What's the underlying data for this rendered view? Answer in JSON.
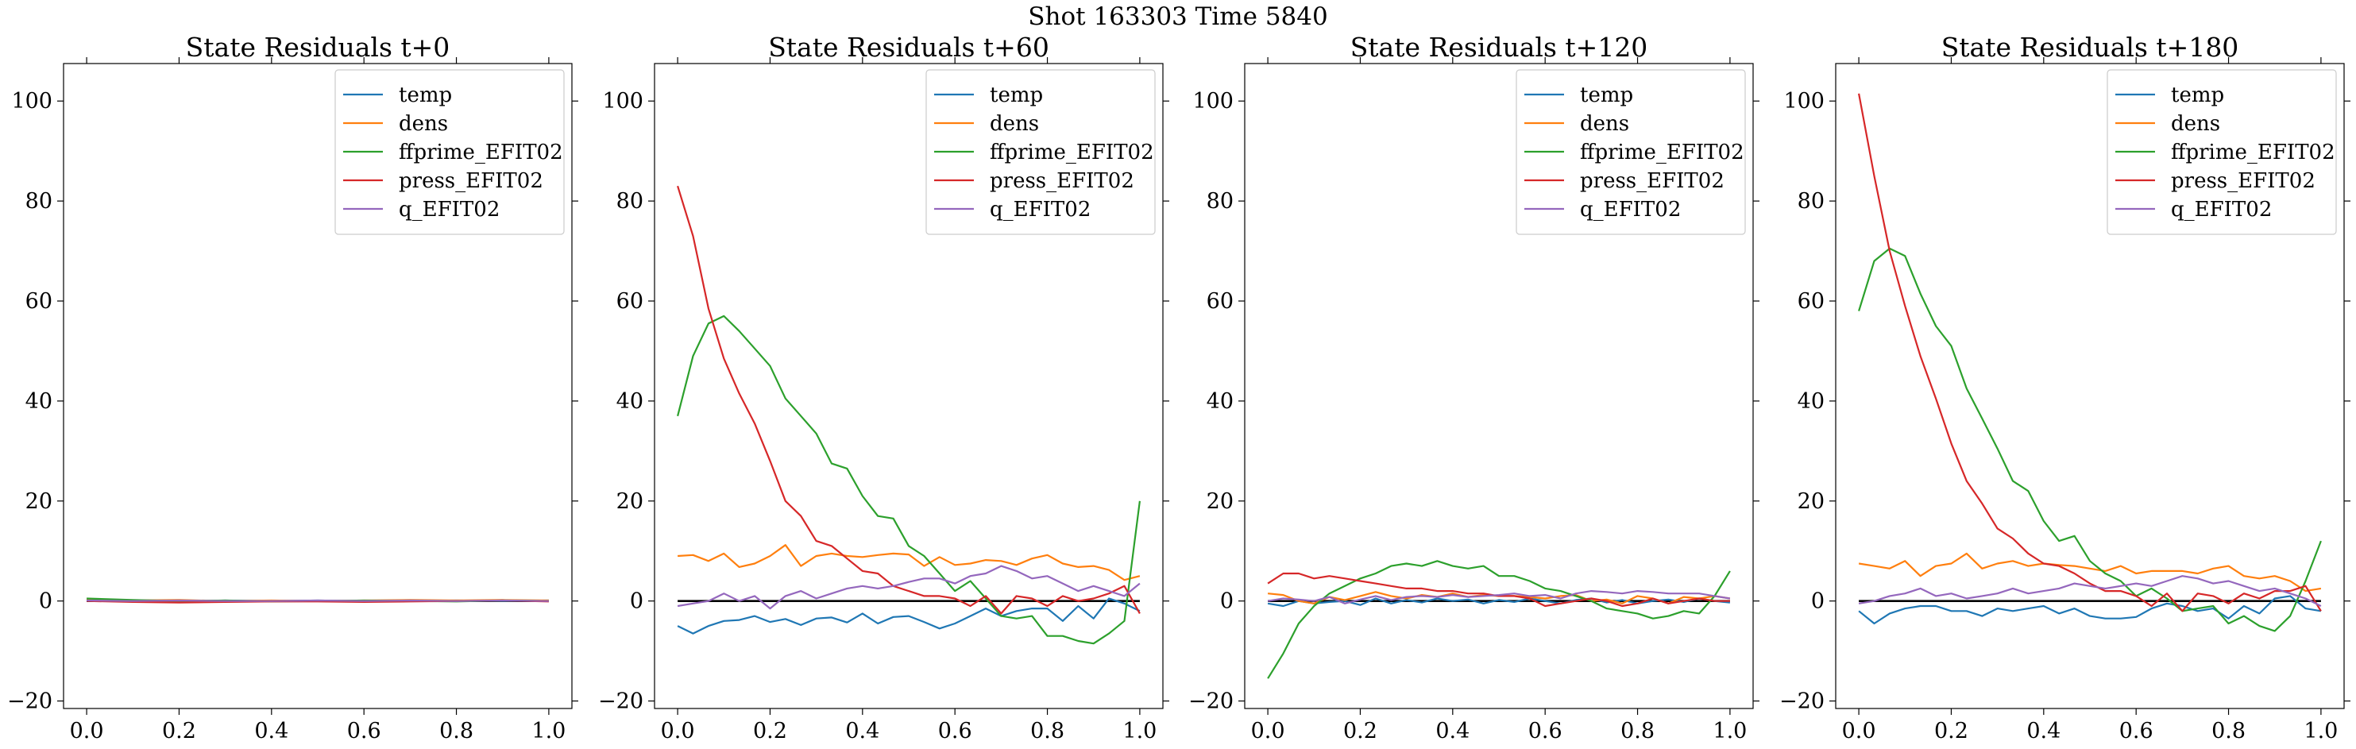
{
  "figure": {
    "suptitle": "Shot 163303   Time 5840"
  },
  "colors": {
    "temp": "#1f77b4",
    "dens": "#ff7f0e",
    "ffprime_EFIT02": "#2ca02c",
    "press_EFIT02": "#d62728",
    "q_EFIT02": "#9467bd",
    "zero_line": "#000000"
  },
  "chart_data": [
    {
      "type": "line",
      "title": "State Residuals t+0",
      "xlim": [
        -0.05,
        1.05
      ],
      "ylim": [
        -21.5,
        107.5
      ],
      "xticks": [
        0.0,
        0.2,
        0.4,
        0.6,
        0.8,
        1.0
      ],
      "xtick_labels": [
        "0.0",
        "0.2",
        "0.4",
        "0.6",
        "0.8",
        "1.0"
      ],
      "yticks": [
        -20,
        0,
        20,
        40,
        60,
        80,
        100
      ],
      "ytick_labels": [
        "−20",
        "0",
        "20",
        "40",
        "60",
        "80",
        "100"
      ],
      "legend": "top-right",
      "grid": false,
      "zero_line": true,
      "x": [
        0.0,
        0.1,
        0.2,
        0.3,
        0.4,
        0.5,
        0.6,
        0.7,
        0.8,
        0.9,
        1.0
      ],
      "series": [
        {
          "name": "temp",
          "values": [
            0.2,
            0.0,
            -0.1,
            0.1,
            0.0,
            0.1,
            0.0,
            0.0,
            0.1,
            0.0,
            0.1
          ]
        },
        {
          "name": "dens",
          "values": [
            0.3,
            0.1,
            0.2,
            0.0,
            0.1,
            0.0,
            0.1,
            0.2,
            0.1,
            0.2,
            0.1
          ]
        },
        {
          "name": "ffprime_EFIT02",
          "values": [
            0.5,
            0.2,
            0.0,
            0.1,
            -0.1,
            0.0,
            0.1,
            0.0,
            -0.1,
            0.1,
            0.0
          ]
        },
        {
          "name": "press_EFIT02",
          "values": [
            0.0,
            -0.2,
            -0.3,
            -0.2,
            -0.1,
            -0.1,
            -0.2,
            -0.1,
            0.0,
            0.1,
            -0.1
          ]
        },
        {
          "name": "q_EFIT02",
          "values": [
            0.1,
            0.0,
            0.1,
            0.0,
            0.0,
            0.1,
            0.0,
            0.1,
            0.0,
            0.1,
            0.0
          ]
        }
      ]
    },
    {
      "type": "line",
      "title": "State Residuals t+60",
      "xlim": [
        -0.05,
        1.05
      ],
      "ylim": [
        -21.5,
        107.5
      ],
      "xticks": [
        0.0,
        0.2,
        0.4,
        0.6,
        0.8,
        1.0
      ],
      "xtick_labels": [
        "0.0",
        "0.2",
        "0.4",
        "0.6",
        "0.8",
        "1.0"
      ],
      "yticks": [
        -20,
        0,
        20,
        40,
        60,
        80,
        100
      ],
      "ytick_labels": [
        "−20",
        "0",
        "20",
        "40",
        "60",
        "80",
        "100"
      ],
      "legend": "top-right",
      "grid": false,
      "zero_line": true,
      "x": [
        0.0,
        0.0333,
        0.0667,
        0.1,
        0.1333,
        0.1667,
        0.2,
        0.2333,
        0.2667,
        0.3,
        0.3333,
        0.3667,
        0.4,
        0.4333,
        0.4667,
        0.5,
        0.5333,
        0.5667,
        0.6,
        0.6333,
        0.6667,
        0.7,
        0.7333,
        0.7667,
        0.8,
        0.8333,
        0.8667,
        0.9,
        0.9333,
        0.9667,
        1.0
      ],
      "series": [
        {
          "name": "temp",
          "values": [
            -5.0,
            -6.5,
            -5.0,
            -4.0,
            -3.8,
            -3.0,
            -4.2,
            -3.6,
            -4.8,
            -3.5,
            -3.3,
            -4.3,
            -2.5,
            -4.5,
            -3.2,
            -3.0,
            -4.2,
            -5.5,
            -4.5,
            -3.0,
            -1.5,
            -3.0,
            -2.0,
            -1.5,
            -1.5,
            -4.0,
            -1.0,
            -3.5,
            0.5,
            -0.5,
            -2.0
          ]
        },
        {
          "name": "dens",
          "values": [
            9.0,
            9.2,
            8.0,
            9.5,
            6.8,
            7.5,
            9.0,
            11.2,
            7.0,
            9.0,
            9.5,
            9.0,
            8.8,
            9.2,
            9.5,
            9.3,
            7.0,
            8.8,
            7.2,
            7.5,
            8.2,
            8.0,
            7.2,
            8.5,
            9.2,
            7.5,
            6.8,
            7.0,
            6.2,
            4.2,
            5.0
          ]
        },
        {
          "name": "ffprime_EFIT02",
          "values": [
            37.0,
            49.0,
            55.5,
            57.0,
            54.0,
            50.5,
            47.0,
            40.5,
            37.0,
            33.5,
            27.5,
            26.5,
            21.0,
            17.0,
            16.5,
            11.0,
            9.0,
            5.5,
            2.0,
            4.0,
            0.5,
            -3.0,
            -3.5,
            -3.0,
            -7.0,
            -7.0,
            -8.0,
            -8.5,
            -6.5,
            -4.0,
            20.0
          ]
        },
        {
          "name": "press_EFIT02",
          "values": [
            83.0,
            73.0,
            58.5,
            48.5,
            41.5,
            35.5,
            28.0,
            20.0,
            17.0,
            12.0,
            11.0,
            8.5,
            6.0,
            5.5,
            3.0,
            2.0,
            1.0,
            1.0,
            0.5,
            -1.0,
            1.0,
            -2.5,
            1.0,
            0.5,
            -1.0,
            1.0,
            0.0,
            0.5,
            1.5,
            3.0,
            -2.5
          ]
        },
        {
          "name": "q_EFIT02",
          "values": [
            -1.0,
            -0.5,
            0.0,
            1.5,
            0.0,
            1.0,
            -1.5,
            1.0,
            2.0,
            0.5,
            1.5,
            2.5,
            3.0,
            2.5,
            3.0,
            3.8,
            4.5,
            4.5,
            3.5,
            5.0,
            5.5,
            7.0,
            6.0,
            4.5,
            5.0,
            3.5,
            2.0,
            3.0,
            2.0,
            1.0,
            3.5
          ]
        }
      ]
    },
    {
      "type": "line",
      "title": "State Residuals t+120",
      "xlim": [
        -0.05,
        1.05
      ],
      "ylim": [
        -21.5,
        107.5
      ],
      "xticks": [
        0.0,
        0.2,
        0.4,
        0.6,
        0.8,
        1.0
      ],
      "xtick_labels": [
        "0.0",
        "0.2",
        "0.4",
        "0.6",
        "0.8",
        "1.0"
      ],
      "yticks": [
        -20,
        0,
        20,
        40,
        60,
        80,
        100
      ],
      "ytick_labels": [
        "−20",
        "0",
        "20",
        "40",
        "60",
        "80",
        "100"
      ],
      "legend": "top-right",
      "grid": false,
      "zero_line": true,
      "x": [
        0.0,
        0.0333,
        0.0667,
        0.1,
        0.1333,
        0.1667,
        0.2,
        0.2333,
        0.2667,
        0.3,
        0.3333,
        0.3667,
        0.4,
        0.4333,
        0.4667,
        0.5,
        0.5333,
        0.5667,
        0.6,
        0.6333,
        0.6667,
        0.7,
        0.7333,
        0.7667,
        0.8,
        0.8333,
        0.8667,
        0.9,
        0.9333,
        0.9667,
        1.0
      ],
      "series": [
        {
          "name": "temp",
          "values": [
            -0.5,
            -1.0,
            0.0,
            -0.5,
            -0.2,
            0.0,
            -0.8,
            0.5,
            -0.5,
            0.2,
            -0.3,
            0.5,
            0.0,
            0.3,
            -0.5,
            0.2,
            -0.2,
            0.5,
            0.0,
            -0.5,
            0.2,
            0.5,
            -0.3,
            0.2,
            -0.5,
            0.0,
            0.3,
            -0.2,
            0.5,
            0.0,
            -0.3
          ]
        },
        {
          "name": "dens",
          "values": [
            1.5,
            1.2,
            0.0,
            -0.5,
            0.8,
            0.2,
            1.0,
            1.8,
            1.0,
            0.5,
            1.2,
            0.8,
            1.5,
            0.8,
            1.2,
            1.0,
            1.0,
            0.8,
            0.5,
            1.0,
            1.2,
            0.0,
            0.3,
            -0.5,
            1.0,
            0.5,
            -0.5,
            0.8,
            0.5,
            1.0,
            0.5
          ]
        },
        {
          "name": "ffprime_EFIT02",
          "values": [
            -15.5,
            -10.5,
            -4.5,
            -1.0,
            1.5,
            3.0,
            4.5,
            5.5,
            7.0,
            7.5,
            7.0,
            8.0,
            7.0,
            6.5,
            7.0,
            5.0,
            5.0,
            4.0,
            2.5,
            2.0,
            1.0,
            0.0,
            -1.5,
            -2.0,
            -2.5,
            -3.5,
            -3.0,
            -2.0,
            -2.5,
            1.0,
            6.0
          ]
        },
        {
          "name": "press_EFIT02",
          "values": [
            3.5,
            5.5,
            5.5,
            4.5,
            5.0,
            4.5,
            4.0,
            3.5,
            3.0,
            2.5,
            2.5,
            2.0,
            2.0,
            1.5,
            1.5,
            1.0,
            1.0,
            0.5,
            -1.0,
            -0.5,
            0.0,
            0.5,
            0.0,
            -1.0,
            -0.5,
            0.5,
            -0.5,
            0.0,
            0.5,
            0.0,
            0.0
          ]
        },
        {
          "name": "q_EFIT02",
          "values": [
            0.0,
            0.5,
            0.3,
            0.0,
            0.8,
            -0.5,
            0.3,
            1.0,
            0.2,
            0.8,
            1.0,
            0.8,
            1.2,
            0.8,
            1.0,
            1.2,
            1.5,
            1.0,
            1.2,
            0.5,
            1.5,
            2.0,
            1.8,
            1.5,
            2.0,
            1.8,
            1.5,
            1.5,
            1.5,
            1.0,
            0.5
          ]
        }
      ]
    },
    {
      "type": "line",
      "title": "State Residuals t+180",
      "xlim": [
        -0.05,
        1.05
      ],
      "ylim": [
        -21.5,
        107.5
      ],
      "xticks": [
        0.0,
        0.2,
        0.4,
        0.6,
        0.8,
        1.0
      ],
      "xtick_labels": [
        "0.0",
        "0.2",
        "0.4",
        "0.6",
        "0.8",
        "1.0"
      ],
      "yticks": [
        -20,
        0,
        20,
        40,
        60,
        80,
        100
      ],
      "ytick_labels": [
        "−20",
        "0",
        "20",
        "40",
        "60",
        "80",
        "100"
      ],
      "legend": "top-right",
      "grid": false,
      "zero_line": true,
      "x": [
        0.0,
        0.0333,
        0.0667,
        0.1,
        0.1333,
        0.1667,
        0.2,
        0.2333,
        0.2667,
        0.3,
        0.3333,
        0.3667,
        0.4,
        0.4333,
        0.4667,
        0.5,
        0.5333,
        0.5667,
        0.6,
        0.6333,
        0.6667,
        0.7,
        0.7333,
        0.7667,
        0.8,
        0.8333,
        0.8667,
        0.9,
        0.9333,
        0.9667,
        1.0
      ],
      "series": [
        {
          "name": "temp",
          "values": [
            -2.0,
            -4.5,
            -2.5,
            -1.5,
            -1.0,
            -1.0,
            -2.0,
            -2.0,
            -3.0,
            -1.5,
            -2.0,
            -1.5,
            -1.0,
            -2.5,
            -1.5,
            -3.0,
            -3.5,
            -3.5,
            -3.2,
            -1.5,
            -0.5,
            -1.0,
            -2.0,
            -1.5,
            -3.5,
            -1.0,
            -2.5,
            0.5,
            1.0,
            -1.5,
            -2.0
          ]
        },
        {
          "name": "dens",
          "values": [
            7.5,
            7.0,
            6.5,
            8.0,
            5.0,
            7.0,
            7.5,
            9.5,
            6.5,
            7.5,
            8.0,
            7.0,
            7.5,
            7.2,
            7.0,
            6.5,
            6.0,
            7.0,
            5.5,
            6.0,
            6.0,
            6.0,
            5.5,
            6.5,
            7.0,
            5.0,
            4.5,
            5.0,
            4.0,
            2.0,
            2.5
          ]
        },
        {
          "name": "ffprime_EFIT02",
          "values": [
            58.0,
            68.0,
            70.5,
            69.0,
            61.5,
            55.0,
            51.0,
            42.5,
            36.5,
            30.5,
            24.0,
            22.0,
            16.0,
            12.0,
            13.0,
            8.0,
            5.5,
            4.0,
            1.0,
            2.5,
            0.5,
            -2.0,
            -1.5,
            -1.0,
            -4.5,
            -3.0,
            -5.0,
            -6.0,
            -3.0,
            4.0,
            12.0
          ]
        },
        {
          "name": "press_EFIT02",
          "values": [
            101.5,
            85.0,
            70.0,
            59.0,
            49.0,
            40.5,
            31.5,
            24.0,
            19.5,
            14.5,
            12.5,
            9.5,
            7.5,
            7.0,
            5.5,
            3.5,
            2.0,
            2.0,
            1.0,
            -1.0,
            1.5,
            -2.0,
            1.5,
            1.0,
            -0.5,
            1.5,
            0.5,
            2.0,
            2.0,
            3.0,
            -2.0
          ]
        },
        {
          "name": "q_EFIT02",
          "values": [
            -0.5,
            0.0,
            1.0,
            1.5,
            2.5,
            1.0,
            1.5,
            0.5,
            1.0,
            1.5,
            2.5,
            1.5,
            2.0,
            2.5,
            3.5,
            3.0,
            2.5,
            3.0,
            3.5,
            3.0,
            4.0,
            5.0,
            4.5,
            3.5,
            4.0,
            3.0,
            2.0,
            2.5,
            1.5,
            0.5,
            -1.0
          ]
        }
      ]
    }
  ]
}
